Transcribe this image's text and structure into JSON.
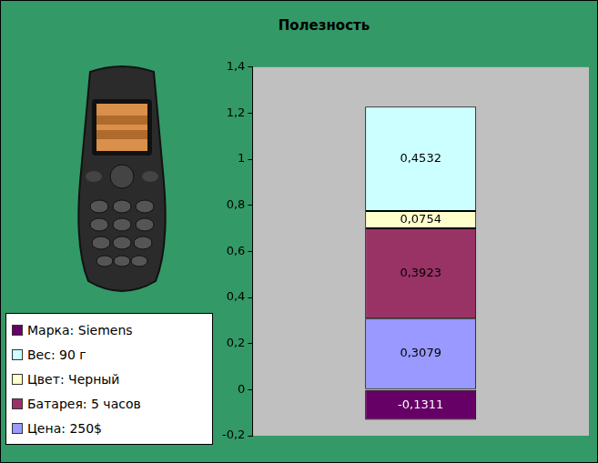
{
  "chart_data": {
    "type": "bar",
    "title": "Полезность",
    "stacked": true,
    "data_labels": true,
    "grid": false,
    "legend": "left",
    "tick_labels": "y",
    "categories": [
      null
    ],
    "series": [
      {
        "name": "Марка: Siemens",
        "color": "#660066",
        "values": [
          -0.1311
        ],
        "value_labels": [
          "-0,1311"
        ]
      },
      {
        "name": "Вес: 90 г",
        "color": "#ccffff",
        "values": [
          0.4532
        ],
        "value_labels": [
          "0,4532"
        ]
      },
      {
        "name": "Цвет: Черный",
        "color": "#ffffcc",
        "values": [
          0.0754
        ],
        "value_labels": [
          "0,0754"
        ]
      },
      {
        "name": "Батарея: 5 часов",
        "color": "#993366",
        "values": [
          0.3923
        ],
        "value_labels": [
          "0,3923"
        ]
      },
      {
        "name": "Цена: 250$",
        "color": "#9999ff",
        "values": [
          0.3079
        ],
        "value_labels": [
          "0,3079"
        ]
      }
    ],
    "ylim": [
      -0.2,
      1.4
    ],
    "yticks": [
      {
        "value": -0.2,
        "label": "-0,2"
      },
      0,
      {
        "value": 0.2,
        "label": "0,2"
      },
      {
        "value": 0.4,
        "label": "0,4"
      },
      {
        "value": 0.6,
        "label": "0,6"
      },
      {
        "value": 0.8,
        "label": "0,8"
      },
      1,
      {
        "value": 1.2,
        "label": "1,2"
      },
      {
        "value": 1.4,
        "label": "1,4"
      }
    ]
  }
}
